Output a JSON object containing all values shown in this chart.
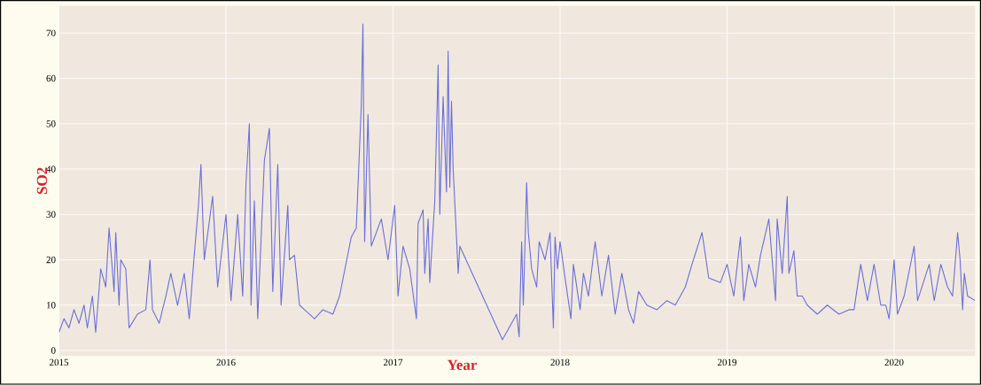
{
  "chart_data": {
    "type": "line",
    "xlabel": "Year",
    "ylabel": "SO2",
    "xlim": [
      2015.0,
      2020.485
    ],
    "ylim": [
      -1.2,
      76
    ],
    "xticks": [
      2015,
      2016,
      2017,
      2018,
      2019,
      2020
    ],
    "yticks": [
      0,
      10,
      20,
      30,
      40,
      50,
      60,
      70
    ],
    "grid": true,
    "marker": "none",
    "line_style": "solid",
    "series": [
      {
        "color": "#6b6fd8",
        "x": [
          2015.0,
          2015.03,
          2015.06,
          2015.09,
          2015.12,
          2015.15,
          2015.17,
          2015.2,
          2015.22,
          2015.25,
          2015.28,
          2015.3,
          2015.33,
          2015.34,
          2015.36,
          2015.37,
          2015.4,
          2015.42,
          2015.47,
          2015.52,
          2015.545,
          2015.56,
          2015.6,
          2015.64,
          2015.67,
          2015.71,
          2015.75,
          2015.78,
          2015.81,
          2015.835,
          2015.85,
          2015.87,
          2015.92,
          2015.95,
          2016.0,
          2016.03,
          2016.07,
          2016.1,
          2016.12,
          2016.14,
          2016.15,
          2016.17,
          2016.19,
          2016.23,
          2016.26,
          2016.28,
          2016.31,
          2016.33,
          2016.37,
          2016.38,
          2016.41,
          2016.44,
          2016.47,
          2016.53,
          2016.58,
          2016.64,
          2016.68,
          2016.75,
          2016.78,
          2016.81,
          2016.82,
          2016.83,
          2016.85,
          2016.87,
          2016.93,
          2016.97,
          2017.01,
          2017.03,
          2017.06,
          2017.1,
          2017.14,
          2017.15,
          2017.18,
          2017.19,
          2017.21,
          2017.22,
          2017.25,
          2017.27,
          2017.28,
          2017.3,
          2017.32,
          2017.33,
          2017.34,
          2017.35,
          2017.36,
          2017.38,
          2017.39,
          2017.4,
          2017.655,
          2017.74,
          2017.755,
          2017.77,
          2017.78,
          2017.8,
          2017.81,
          2017.83,
          2017.86,
          2017.875,
          2017.91,
          2017.94,
          2017.96,
          2017.97,
          2017.985,
          2018.0,
          2018.03,
          2018.065,
          2018.08,
          2018.12,
          2018.14,
          2018.17,
          2018.21,
          2018.25,
          2018.29,
          2018.33,
          2018.37,
          2018.41,
          2018.44,
          2018.47,
          2018.52,
          2018.58,
          2018.64,
          2018.69,
          2018.75,
          2018.79,
          2018.85,
          2018.89,
          2018.96,
          2019.0,
          2019.04,
          2019.08,
          2019.1,
          2019.13,
          2019.17,
          2019.2,
          2019.25,
          2019.29,
          2019.3,
          2019.33,
          2019.36,
          2019.37,
          2019.4,
          2019.42,
          2019.45,
          2019.48,
          2019.54,
          2019.6,
          2019.67,
          2019.73,
          2019.76,
          2019.8,
          2019.84,
          2019.88,
          2019.92,
          2019.95,
          2019.97,
          2020.0,
          2020.02,
          2020.06,
          2020.12,
          2020.14,
          2020.21,
          2020.24,
          2020.28,
          2020.32,
          2020.35,
          2020.38,
          2020.395,
          2020.41,
          2020.42,
          2020.44,
          2020.485
        ],
        "values": [
          4,
          7,
          5,
          9,
          6,
          10,
          5,
          12,
          4,
          18,
          14,
          27,
          13,
          26,
          10,
          20,
          18,
          5,
          8,
          9,
          20,
          9,
          6,
          12,
          17,
          10,
          17,
          7,
          21,
          32,
          41,
          20,
          34,
          14,
          30,
          11,
          30,
          12,
          37,
          50,
          10,
          33,
          7,
          42,
          49,
          13,
          41,
          10,
          32,
          20,
          21,
          10,
          9,
          7,
          9,
          8,
          12,
          25,
          27,
          54,
          72,
          24,
          52,
          23,
          29,
          20,
          32,
          12,
          23,
          18,
          7,
          28,
          31,
          17,
          29,
          15,
          33,
          63,
          30,
          56,
          35,
          66,
          36,
          55,
          40,
          25,
          17,
          23,
          2.4,
          8,
          3,
          24,
          10,
          37,
          26,
          18,
          14,
          24,
          20,
          26,
          5,
          25,
          18,
          24,
          16,
          7,
          19,
          9,
          17,
          12,
          24,
          12,
          21,
          8,
          17,
          9,
          6,
          13,
          10,
          9,
          11,
          10,
          14,
          19,
          26,
          16,
          15,
          19,
          12,
          25,
          11,
          19,
          14,
          21,
          29,
          11,
          29,
          17,
          34,
          17,
          22,
          12,
          12,
          10,
          8,
          10,
          8,
          9,
          9,
          19,
          11,
          19,
          10,
          10,
          7,
          20,
          8,
          12,
          23,
          11,
          19,
          11,
          19,
          14,
          12,
          26,
          20,
          9,
          17,
          12,
          11
        ]
      }
    ]
  }
}
